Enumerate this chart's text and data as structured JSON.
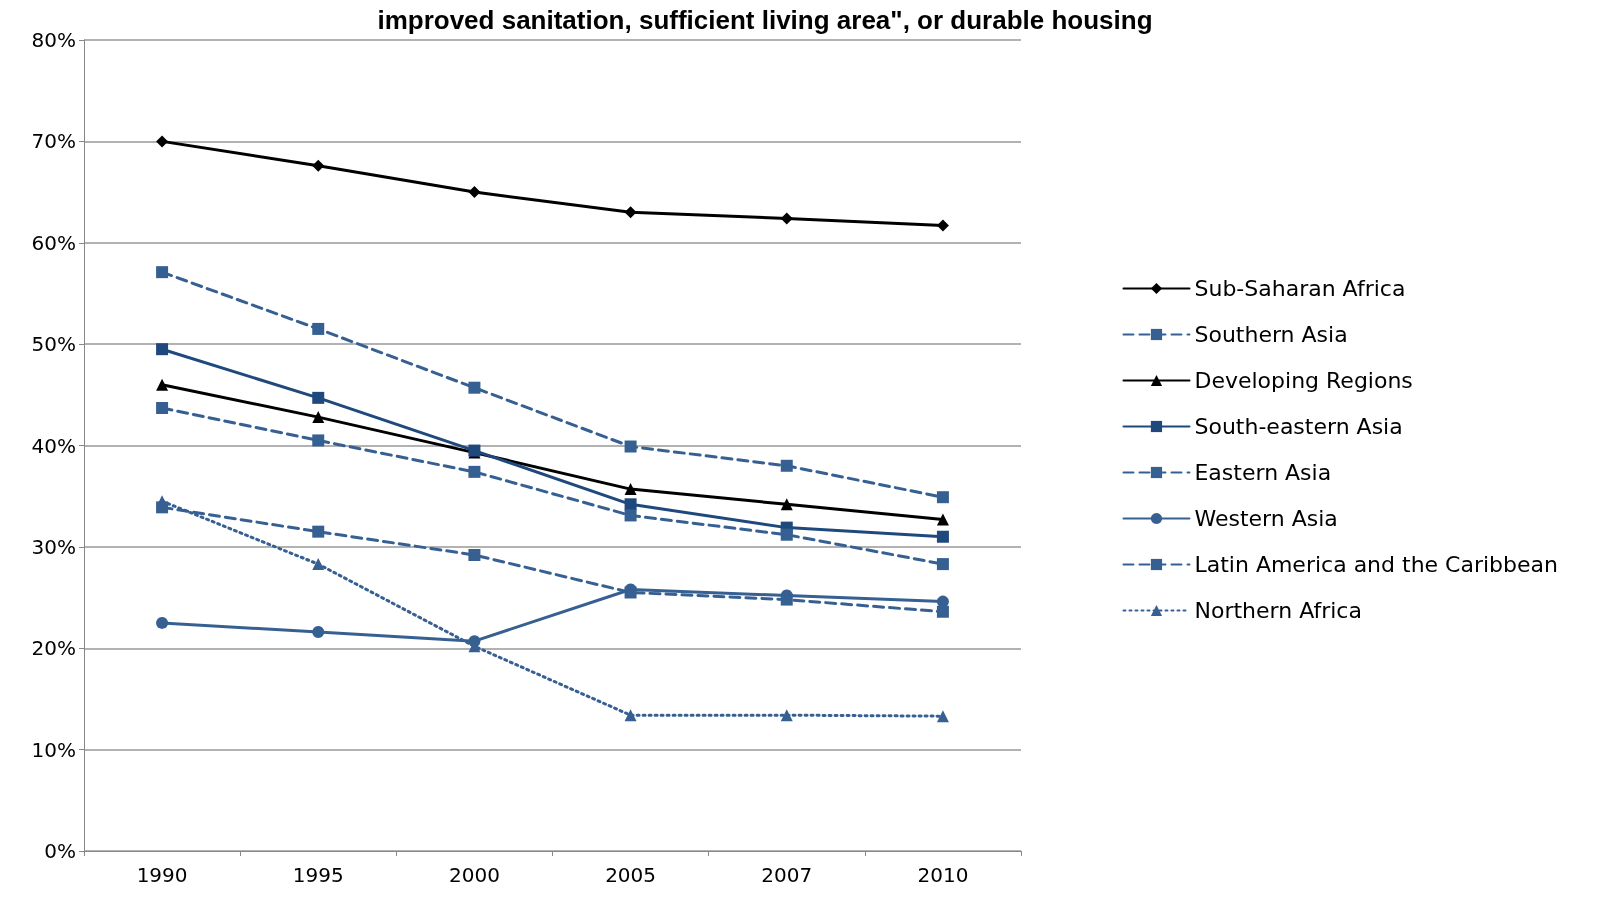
{
  "chart_data": {
    "type": "line",
    "title": "improved sanitation, sufficient living area\", or durable housing",
    "categories": [
      "1990",
      "1995",
      "2000",
      "2005",
      "2007",
      "2010"
    ],
    "ylim": [
      0,
      80
    ],
    "yticks": [
      {
        "value": 0,
        "label": "0%"
      },
      {
        "value": 10,
        "label": "10%"
      },
      {
        "value": 20,
        "label": "20%"
      },
      {
        "value": 30,
        "label": "30%"
      },
      {
        "value": 40,
        "label": "40%"
      },
      {
        "value": 50,
        "label": "50%"
      },
      {
        "value": 60,
        "label": "60%"
      },
      {
        "value": 70,
        "label": "70%"
      },
      {
        "value": 80,
        "label": "80%"
      }
    ],
    "grid": "y",
    "legend": "right",
    "series": [
      {
        "name": "Sub-Saharan Africa",
        "color": "#000000",
        "marker": "diamond",
        "line_style": "solid",
        "values": [
          70,
          67.6,
          65,
          63,
          62.4,
          61.7
        ]
      },
      {
        "name": "Southern Asia",
        "color": "#376092",
        "marker": "square",
        "line_style": "dashed",
        "values": [
          57.1,
          51.5,
          45.7,
          39.9,
          38,
          34.9
        ]
      },
      {
        "name": "Developing Regions",
        "color": "#000000",
        "marker": "triangle",
        "line_style": "solid",
        "values": [
          46,
          42.8,
          39.3,
          35.7,
          34.2,
          32.7
        ]
      },
      {
        "name": "South-eastern Asia",
        "color": "#1f497d",
        "marker": "square",
        "line_style": "solid",
        "values": [
          49.5,
          44.7,
          39.5,
          34.2,
          31.9,
          31
        ]
      },
      {
        "name": "Eastern Asia",
        "color": "#376092",
        "marker": "square",
        "line_style": "dashed",
        "values": [
          43.7,
          40.5,
          37.4,
          33.1,
          31.2,
          28.3
        ]
      },
      {
        "name": "Western Asia",
        "color": "#376092",
        "marker": "circle",
        "line_style": "solid",
        "values": [
          22.5,
          21.6,
          20.7,
          25.8,
          25.2,
          24.6
        ]
      },
      {
        "name": "Latin America and the Caribbean",
        "color": "#376092",
        "marker": "square",
        "line_style": "dashed",
        "values": [
          33.9,
          31.5,
          29.2,
          25.5,
          24.8,
          23.6
        ]
      },
      {
        "name": "Northern Africa",
        "color": "#376092",
        "marker": "triangle",
        "line_style": "dotted",
        "values": [
          34.5,
          28.3,
          20.2,
          13.4,
          13.4,
          13.3
        ]
      }
    ]
  }
}
